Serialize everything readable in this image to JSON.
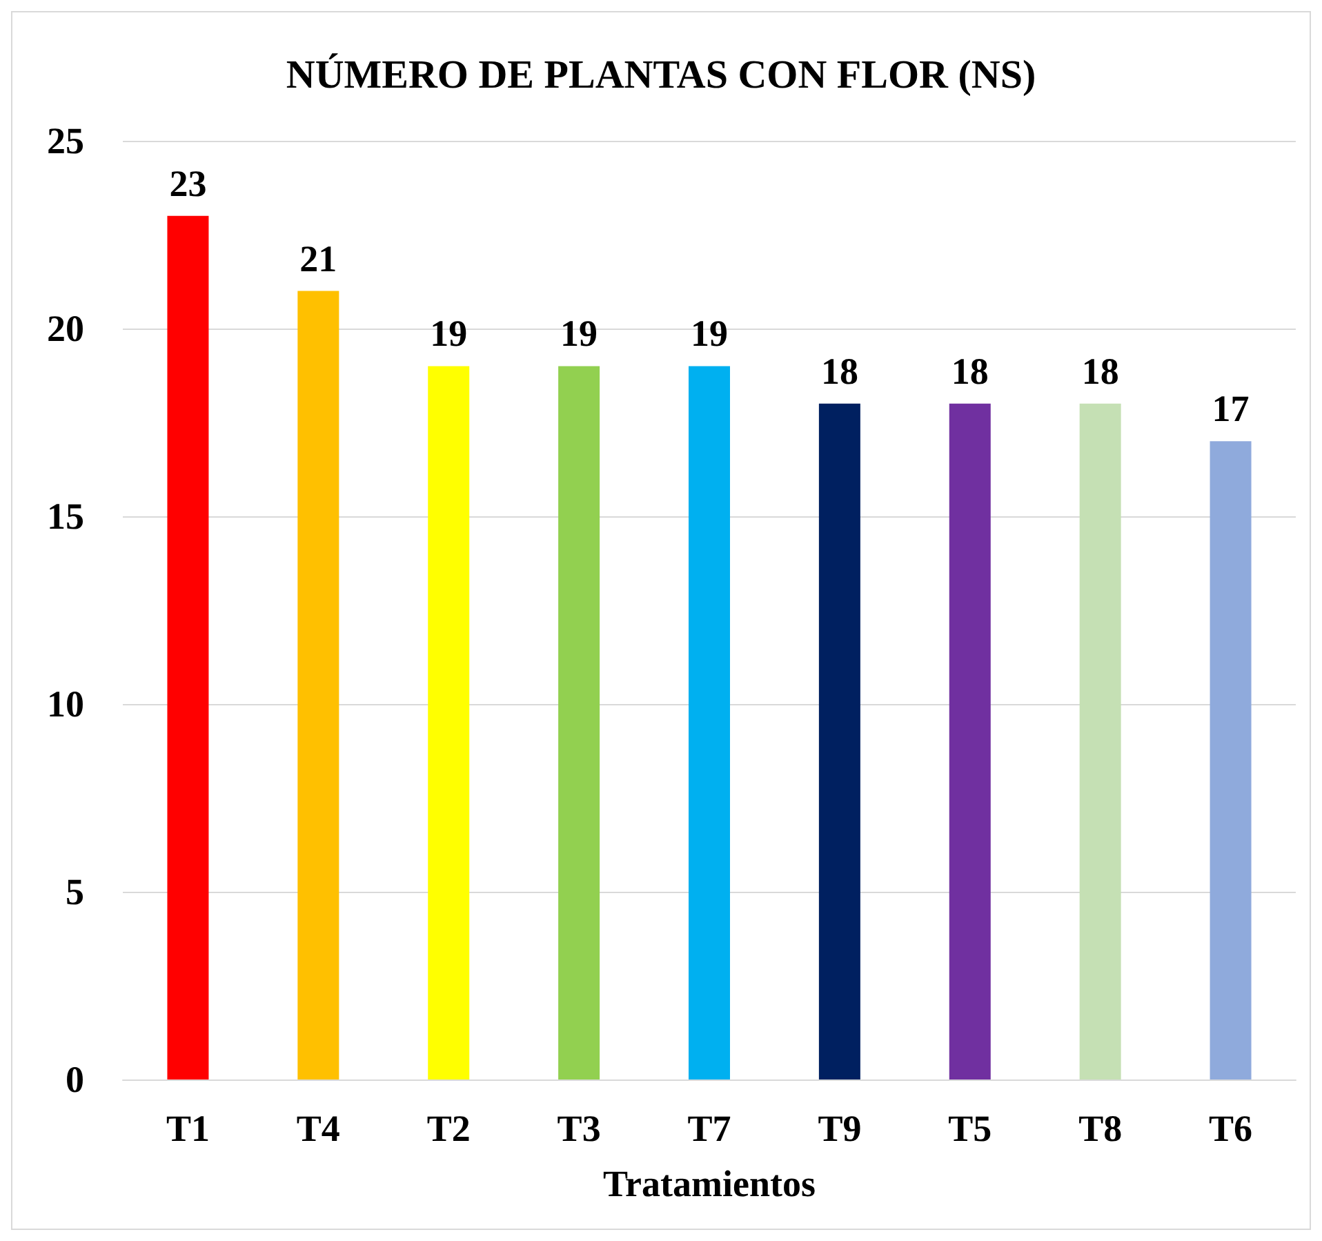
{
  "chart_data": {
    "type": "bar",
    "title": "NÚMERO DE PLANTAS CON FLOR (NS)",
    "xlabel": "Tratamientos",
    "categories": [
      "T1",
      "T4",
      "T2",
      "T3",
      "T7",
      "T9",
      "T5",
      "T8",
      "T6"
    ],
    "values": [
      23,
      21,
      19,
      19,
      19,
      18,
      18,
      18,
      17
    ],
    "colors": [
      "#ff0000",
      "#ffc000",
      "#ffff00",
      "#92d050",
      "#00b0f0",
      "#002060",
      "#7030a0",
      "#c5e0b4",
      "#8faadc"
    ],
    "ylim": [
      0,
      25
    ],
    "yticks": [
      0,
      5,
      10,
      15,
      20,
      25
    ],
    "grid": "y",
    "data_labels": true
  }
}
